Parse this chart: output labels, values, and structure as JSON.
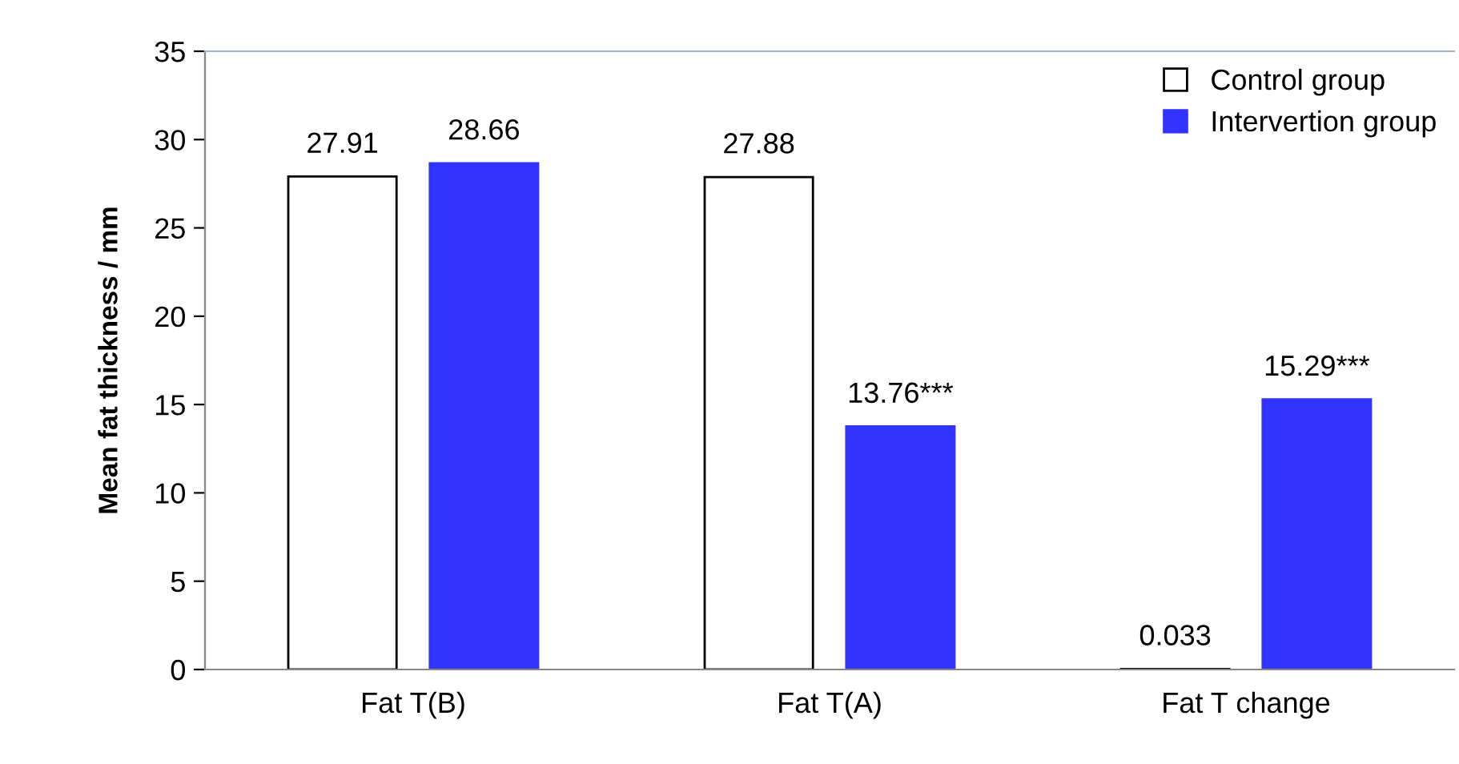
{
  "chart_data": {
    "type": "bar",
    "ylabel": "Mean fat thickness / mm",
    "categories": [
      "Fat T(B)",
      "Fat T(A)",
      "Fat T change"
    ],
    "series": [
      {
        "name": "Control group",
        "color": "#ffffff",
        "values": [
          27.91,
          27.88,
          0.033
        ],
        "value_labels": [
          "27.91",
          "27.88",
          "0.033"
        ]
      },
      {
        "name": "Intervertion group",
        "color": "#3333ff",
        "values": [
          28.66,
          13.76,
          15.29
        ],
        "value_labels": [
          "28.66",
          "13.76***",
          "15.29***"
        ]
      }
    ],
    "ylim": [
      0,
      35
    ],
    "yticks": [
      0,
      5,
      10,
      15,
      20,
      25,
      30,
      35
    ],
    "grid": false,
    "legend": "top right"
  }
}
